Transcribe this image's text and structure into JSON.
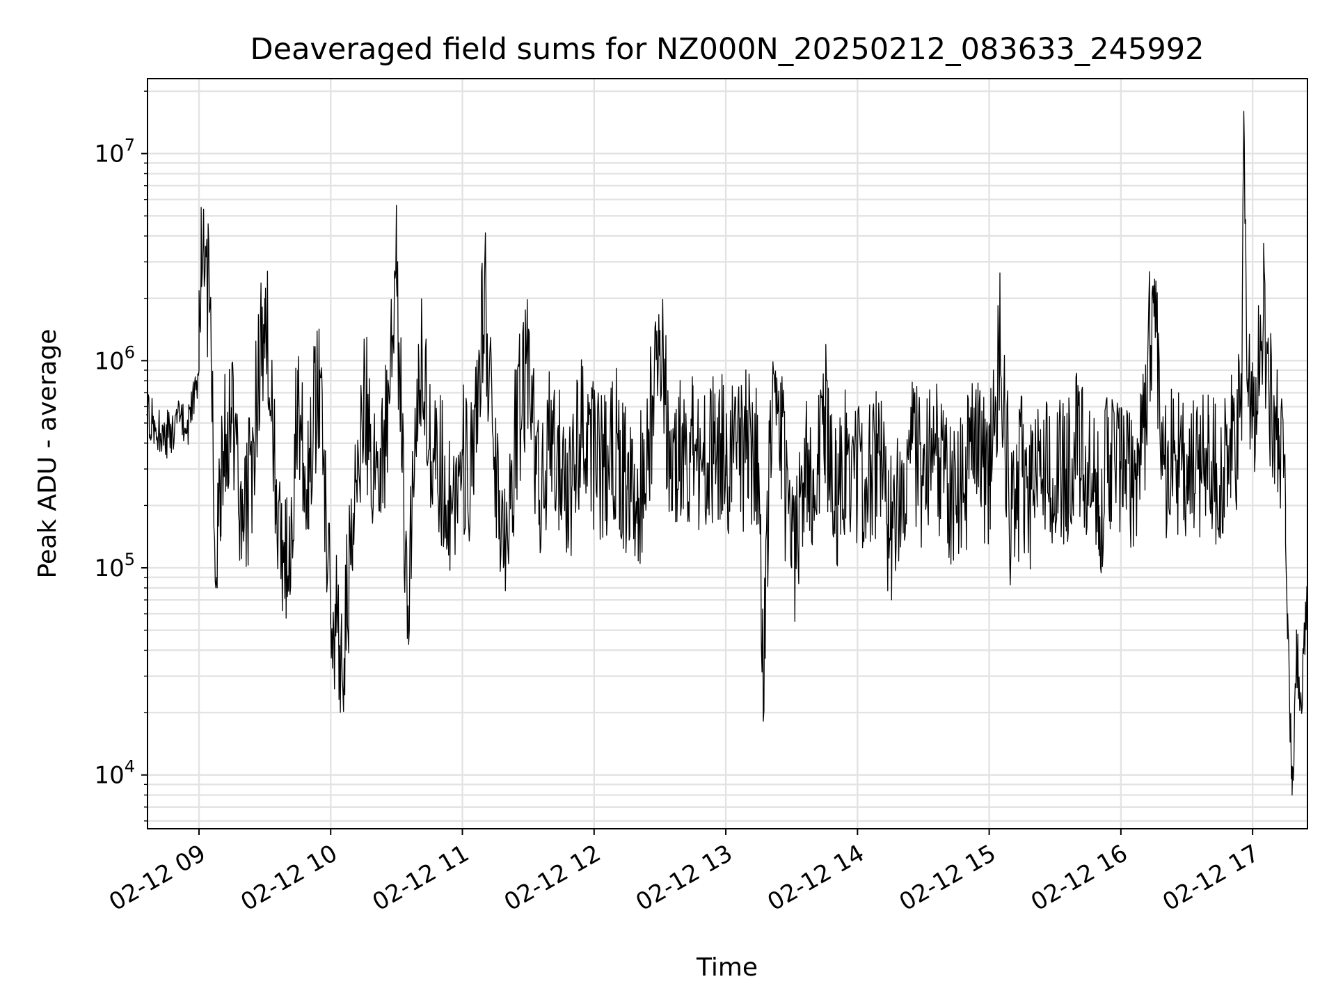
{
  "chart_data": {
    "type": "line",
    "title": "Deaveraged field sums for NZ000N_20250212_083633_245992",
    "xlabel": "Time",
    "ylabel": "Peak ADU - average",
    "yscale": "log",
    "xlim": [
      "2025-02-12 08:36:33",
      "2025-02-12 17:25:00"
    ],
    "ylim": [
      5500,
      23000000
    ],
    "grid": "both (major and minor)",
    "x_ticks": [
      {
        "value": "2025-02-12 09:00",
        "label": "02-12 09"
      },
      {
        "value": "2025-02-12 10:00",
        "label": "02-12 10"
      },
      {
        "value": "2025-02-12 11:00",
        "label": "02-12 11"
      },
      {
        "value": "2025-02-12 12:00",
        "label": "02-12 12"
      },
      {
        "value": "2025-02-12 13:00",
        "label": "02-12 13"
      },
      {
        "value": "2025-02-12 14:00",
        "label": "02-12 14"
      },
      {
        "value": "2025-02-12 15:00",
        "label": "02-12 15"
      },
      {
        "value": "2025-02-12 16:00",
        "label": "02-12 16"
      },
      {
        "value": "2025-02-12 17:00",
        "label": "02-12 17"
      }
    ],
    "y_ticks": [
      {
        "value": 10000,
        "base": "10",
        "exp": "4"
      },
      {
        "value": 100000,
        "base": "10",
        "exp": "5"
      },
      {
        "value": 1000000,
        "base": "10",
        "exp": "6"
      },
      {
        "value": 10000000,
        "base": "10",
        "exp": "7"
      }
    ],
    "series": [
      {
        "color": "#000000",
        "x": [
          "08:36",
          "08:40",
          "08:45",
          "08:50",
          "08:54",
          "08:57",
          "09:00",
          "09:01",
          "09:05",
          "09:08",
          "09:10",
          "09:15",
          "09:20",
          "09:25",
          "09:30",
          "09:35",
          "09:40",
          "09:45",
          "09:50",
          "09:55",
          "10:00",
          "10:05",
          "10:10",
          "10:15",
          "10:20",
          "10:25",
          "10:30",
          "10:35",
          "10:40",
          "10:45",
          "10:50",
          "10:55",
          "11:00",
          "11:05",
          "11:10",
          "11:15",
          "11:20",
          "11:25",
          "11:30",
          "11:35",
          "11:40",
          "11:45",
          "11:50",
          "11:55",
          "12:00",
          "12:05",
          "12:10",
          "12:15",
          "12:20",
          "12:25",
          "12:30",
          "12:35",
          "12:40",
          "12:45",
          "12:50",
          "12:55",
          "13:00",
          "13:05",
          "13:10",
          "13:15",
          "13:17",
          "13:20",
          "13:25",
          "13:30",
          "13:35",
          "13:40",
          "13:45",
          "13:50",
          "13:55",
          "14:00",
          "14:05",
          "14:10",
          "14:15",
          "14:20",
          "14:25",
          "14:30",
          "14:35",
          "14:40",
          "14:45",
          "14:50",
          "14:55",
          "15:00",
          "15:05",
          "15:10",
          "15:15",
          "15:20",
          "15:25",
          "15:30",
          "15:35",
          "15:40",
          "15:45",
          "15:50",
          "15:55",
          "16:00",
          "16:05",
          "16:10",
          "16:15",
          "16:20",
          "16:25",
          "16:30",
          "16:35",
          "16:40",
          "16:45",
          "16:50",
          "16:55",
          "16:56",
          "16:58",
          "17:00",
          "17:05",
          "17:08",
          "17:10",
          "17:12",
          "17:14",
          "17:15",
          "17:16",
          "17:18",
          "17:20",
          "17:22",
          "17:25"
        ],
        "values": [
          550000,
          480000,
          430000,
          500000,
          470000,
          600000,
          900000,
          5500000,
          1800000,
          90000,
          300000,
          500000,
          150000,
          400000,
          2000000,
          250000,
          100000,
          600000,
          300000,
          900000,
          60000,
          40000,
          120000,
          700000,
          300000,
          450000,
          2400000,
          60000,
          1200000,
          400000,
          300000,
          200000,
          350000,
          250000,
          2200000,
          300000,
          150000,
          500000,
          1000000,
          200000,
          400000,
          300000,
          250000,
          600000,
          350000,
          300000,
          400000,
          250000,
          200000,
          450000,
          1400000,
          300000,
          400000,
          350000,
          300000,
          400000,
          350000,
          300000,
          400000,
          300000,
          27000,
          400000,
          500000,
          100000,
          250000,
          300000,
          600000,
          200000,
          350000,
          300000,
          250000,
          350000,
          150000,
          300000,
          400000,
          250000,
          350000,
          300000,
          200000,
          300000,
          400000,
          250000,
          1300000,
          150000,
          300000,
          200000,
          350000,
          250000,
          300000,
          400000,
          250000,
          200000,
          350000,
          300000,
          250000,
          400000,
          2300000,
          300000,
          350000,
          250000,
          300000,
          400000,
          250000,
          350000,
          500000,
          16000000,
          600000,
          550000,
          1800000,
          650000,
          550000,
          300000,
          400000,
          200000,
          60000,
          8000,
          40000,
          25000,
          60000
        ]
      }
    ]
  }
}
